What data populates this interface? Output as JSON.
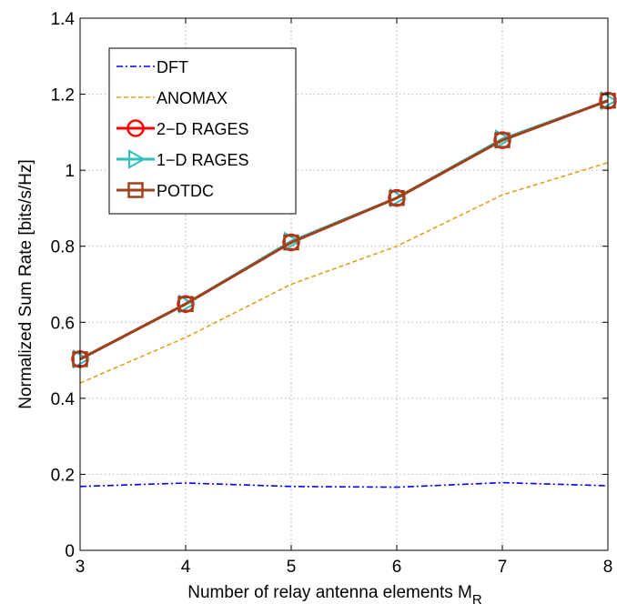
{
  "chart_data": {
    "type": "line",
    "x": [
      3,
      4,
      5,
      6,
      7,
      8
    ],
    "xlim": [
      3,
      8
    ],
    "ylim": [
      0,
      1.4
    ],
    "x_ticks": [
      "3",
      "4",
      "5",
      "6",
      "7",
      "8"
    ],
    "y_ticks": [
      "0",
      "0.2",
      "0.4",
      "0.6",
      "0.8",
      "1",
      "1.2",
      "1.4"
    ],
    "xlabel": "Number of relay antenna elements M",
    "xlabel_subscript": "R",
    "ylabel": "Normalized Sum Rate [bits/s/Hz]",
    "grid": true,
    "legend_position": "top-left",
    "series": [
      {
        "name": "DFT",
        "values": [
          0.168,
          0.177,
          0.168,
          0.166,
          0.178,
          0.17
        ],
        "color": "#0000ff",
        "line": "dash-dot",
        "marker": "none"
      },
      {
        "name": "ANOMAX",
        "values": [
          0.44,
          0.56,
          0.7,
          0.8,
          0.935,
          1.02
        ],
        "color": "#e1a01f",
        "line": "dashed",
        "marker": "none"
      },
      {
        "name": "2−D RAGES",
        "values": [
          0.503,
          0.648,
          0.81,
          0.927,
          1.079,
          1.183
        ],
        "color": "#ff0000",
        "line": "solid",
        "marker": "circle"
      },
      {
        "name": "1−D RAGES",
        "values": [
          0.503,
          0.648,
          0.813,
          0.927,
          1.082,
          1.183
        ],
        "color": "#2ebfbf",
        "line": "solid",
        "marker": "triangle-right"
      },
      {
        "name": "POTDC",
        "values": [
          0.503,
          0.648,
          0.81,
          0.927,
          1.079,
          1.183
        ],
        "color": "#a0411b",
        "line": "solid",
        "marker": "square"
      }
    ]
  }
}
